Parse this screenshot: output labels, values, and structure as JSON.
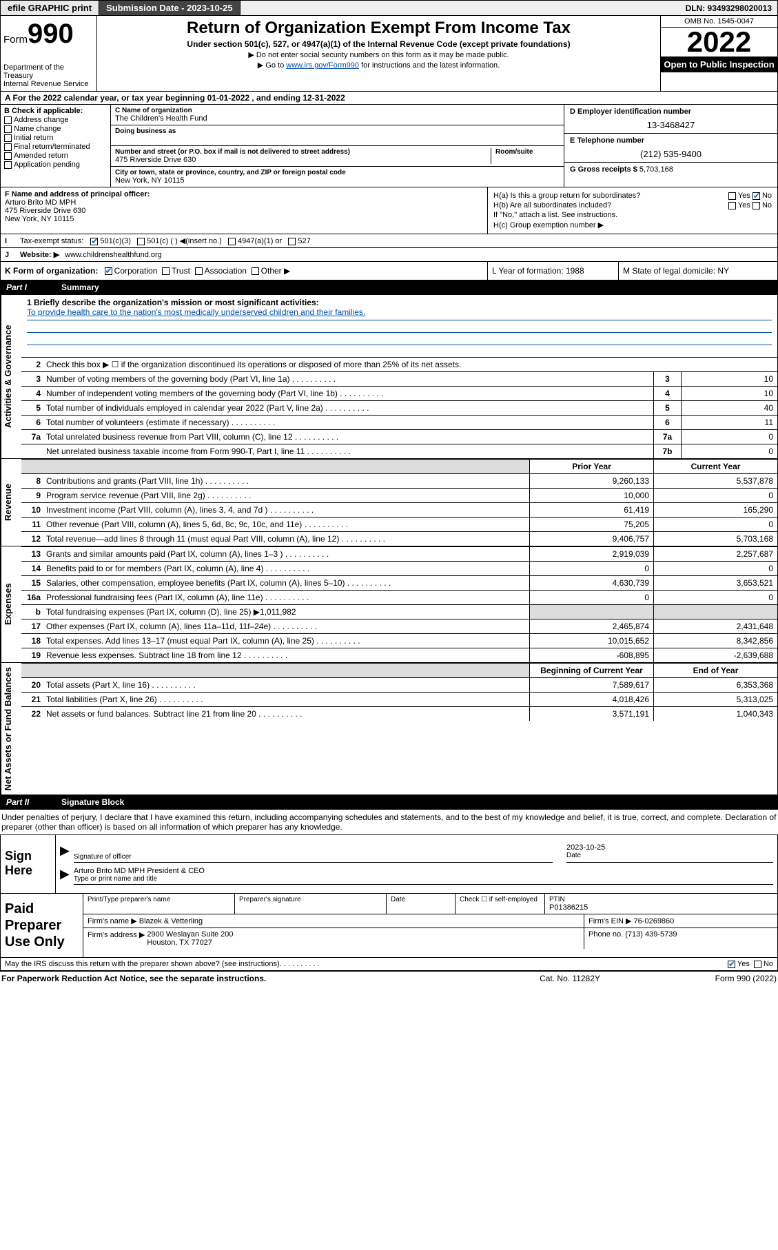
{
  "topbar": {
    "efile": "efile GRAPHIC print",
    "subdate_label": "Submission Date - 2023-10-25",
    "dln": "DLN: 93493298020013"
  },
  "header": {
    "form_prefix": "Form",
    "form_big": "990",
    "title": "Return of Organization Exempt From Income Tax",
    "sub1": "Under section 501(c), 527, or 4947(a)(1) of the Internal Revenue Code (except private foundations)",
    "sub2": "▶ Do not enter social security numbers on this form as it may be made public.",
    "sub3_pre": "▶ Go to ",
    "sub3_link": "www.irs.gov/Form990",
    "sub3_post": " for instructions and the latest information.",
    "dept": "Department of the Treasury\nInternal Revenue Service",
    "omb": "OMB No. 1545-0047",
    "year": "2022",
    "inspect": "Open to Public Inspection"
  },
  "sectionA": "A For the 2022 calendar year, or tax year beginning 01-01-2022   , and ending 12-31-2022",
  "colB": {
    "label": "B Check if applicable:",
    "opts": [
      "Address change",
      "Name change",
      "Initial return",
      "Final return/terminated",
      "Amended return",
      "Application pending"
    ]
  },
  "colC": {
    "name_label": "C Name of organization",
    "name": "The Children's Health Fund",
    "dba_label": "Doing business as",
    "addr_label": "Number and street (or P.O. box if mail is not delivered to street address)",
    "room_label": "Room/suite",
    "addr": "475 Riverside Drive 630",
    "city_label": "City or town, state or province, country, and ZIP or foreign postal code",
    "city": "New York, NY  10115"
  },
  "colD": {
    "ein_label": "D Employer identification number",
    "ein": "13-3468427",
    "tel_label": "E Telephone number",
    "tel": "(212) 535-9400",
    "gross_label": "G Gross receipts $ ",
    "gross": "5,703,168"
  },
  "rowF": {
    "label": "F Name and address of principal officer:",
    "name": "Arturo Brito MD MPH",
    "addr": "475 Riverside Drive 630\nNew York, NY  10115"
  },
  "rowH": {
    "ha": "H(a)  Is this a group return for subordinates?",
    "hb": "H(b)  Are all subordinates included?",
    "hb_note": "If \"No,\" attach a list. See instructions.",
    "hc": "H(c)  Group exemption number ▶"
  },
  "rowI": {
    "label": "Tax-exempt status:",
    "opts": [
      "501(c)(3)",
      "501(c) (  ) ◀(insert no.)",
      "4947(a)(1) or",
      "527"
    ]
  },
  "rowJ": {
    "label": "Website: ▶",
    "url": "www.childrenshealthfund.org"
  },
  "rowK": {
    "label": "K Form of organization:",
    "opts": [
      "Corporation",
      "Trust",
      "Association",
      "Other ▶"
    ]
  },
  "rowL": "L Year of formation: 1988",
  "rowM": "M State of legal domicile: NY",
  "part1": "Part I",
  "part1_title": "Summary",
  "mission_q": "1  Briefly describe the organization's mission or most significant activities:",
  "mission": "To provide health care to the nation's most medically underserved children and their families.",
  "line2": "Check this box ▶ ☐  if the organization discontinued its operations or disposed of more than 25% of its net assets.",
  "governance_rows": [
    {
      "n": "3",
      "d": "Number of voting members of the governing body (Part VI, line 1a)",
      "c": "3",
      "v": "10"
    },
    {
      "n": "4",
      "d": "Number of independent voting members of the governing body (Part VI, line 1b)",
      "c": "4",
      "v": "10"
    },
    {
      "n": "5",
      "d": "Total number of individuals employed in calendar year 2022 (Part V, line 2a)",
      "c": "5",
      "v": "40"
    },
    {
      "n": "6",
      "d": "Total number of volunteers (estimate if necessary)",
      "c": "6",
      "v": "11"
    },
    {
      "n": "7a",
      "d": "Total unrelated business revenue from Part VIII, column (C), line 12",
      "c": "7a",
      "v": "0"
    },
    {
      "n": "",
      "d": "Net unrelated business taxable income from Form 990-T, Part I, line 11",
      "c": "7b",
      "v": "0"
    }
  ],
  "col_prior": "Prior Year",
  "col_current": "Current Year",
  "revenue_rows": [
    {
      "n": "8",
      "d": "Contributions and grants (Part VIII, line 1h)",
      "p": "9,260,133",
      "c": "5,537,878"
    },
    {
      "n": "9",
      "d": "Program service revenue (Part VIII, line 2g)",
      "p": "10,000",
      "c": "0"
    },
    {
      "n": "10",
      "d": "Investment income (Part VIII, column (A), lines 3, 4, and 7d )",
      "p": "61,419",
      "c": "165,290"
    },
    {
      "n": "11",
      "d": "Other revenue (Part VIII, column (A), lines 5, 6d, 8c, 9c, 10c, and 11e)",
      "p": "75,205",
      "c": "0"
    },
    {
      "n": "12",
      "d": "Total revenue—add lines 8 through 11 (must equal Part VIII, column (A), line 12)",
      "p": "9,406,757",
      "c": "5,703,168"
    }
  ],
  "expense_rows": [
    {
      "n": "13",
      "d": "Grants and similar amounts paid (Part IX, column (A), lines 1–3 )",
      "p": "2,919,039",
      "c": "2,257,687"
    },
    {
      "n": "14",
      "d": "Benefits paid to or for members (Part IX, column (A), line 4)",
      "p": "0",
      "c": "0"
    },
    {
      "n": "15",
      "d": "Salaries, other compensation, employee benefits (Part IX, column (A), lines 5–10)",
      "p": "4,630,739",
      "c": "3,653,521"
    },
    {
      "n": "16a",
      "d": "Professional fundraising fees (Part IX, column (A), line 11e)",
      "p": "0",
      "c": "0"
    },
    {
      "n": "b",
      "d": "Total fundraising expenses (Part IX, column (D), line 25) ▶1,011,982",
      "p": "",
      "c": "",
      "shaded": true
    },
    {
      "n": "17",
      "d": "Other expenses (Part IX, column (A), lines 11a–11d, 11f–24e)",
      "p": "2,465,874",
      "c": "2,431,648"
    },
    {
      "n": "18",
      "d": "Total expenses. Add lines 13–17 (must equal Part IX, column (A), line 25)",
      "p": "10,015,652",
      "c": "8,342,856"
    },
    {
      "n": "19",
      "d": "Revenue less expenses. Subtract line 18 from line 12",
      "p": "-608,895",
      "c": "-2,639,688"
    }
  ],
  "col_begin": "Beginning of Current Year",
  "col_end": "End of Year",
  "netassets_rows": [
    {
      "n": "20",
      "d": "Total assets (Part X, line 16)",
      "p": "7,589,617",
      "c": "6,353,368"
    },
    {
      "n": "21",
      "d": "Total liabilities (Part X, line 26)",
      "p": "4,018,426",
      "c": "5,313,025"
    },
    {
      "n": "22",
      "d": "Net assets or fund balances. Subtract line 21 from line 20",
      "p": "3,571,191",
      "c": "1,040,343"
    }
  ],
  "vlabels": {
    "gov": "Activities & Governance",
    "rev": "Revenue",
    "exp": "Expenses",
    "net": "Net Assets or Fund Balances"
  },
  "part2": "Part II",
  "part2_title": "Signature Block",
  "sig_intro": "Under penalties of perjury, I declare that I have examined this return, including accompanying schedules and statements, and to the best of my knowledge and belief, it is true, correct, and complete. Declaration of preparer (other than officer) is based on all information of which preparer has any knowledge.",
  "sign_here": "Sign Here",
  "sig_officer_label": "Signature of officer",
  "sig_date_label": "Date",
  "sig_date": "2023-10-25",
  "sig_name": "Arturo Brito MD MPH  President & CEO",
  "sig_name_label": "Type or print name and title",
  "prep_label": "Paid Preparer Use Only",
  "prep": {
    "name_label": "Print/Type preparer's name",
    "sig_label": "Preparer's signature",
    "date_label": "Date",
    "check_label": "Check ☐ if self-employed",
    "ptin_label": "PTIN",
    "ptin": "P01386215",
    "firm_name_label": "Firm's name   ▶",
    "firm_name": "Blazek & Vetterling",
    "firm_ein_label": "Firm's EIN ▶",
    "firm_ein": "76-0269860",
    "firm_addr_label": "Firm's address ▶",
    "firm_addr": "2900 Weslayan Suite 200\nHouston, TX  77027",
    "phone_label": "Phone no.",
    "phone": "(713) 439-5739"
  },
  "may_irs": "May the IRS discuss this return with the preparer shown above? (see instructions)",
  "footer": {
    "pra": "For Paperwork Reduction Act Notice, see the separate instructions.",
    "cat": "Cat. No. 11282Y",
    "form": "Form 990 (2022)"
  },
  "colors": {
    "link": "#004fa3",
    "check": "#0066cc"
  }
}
